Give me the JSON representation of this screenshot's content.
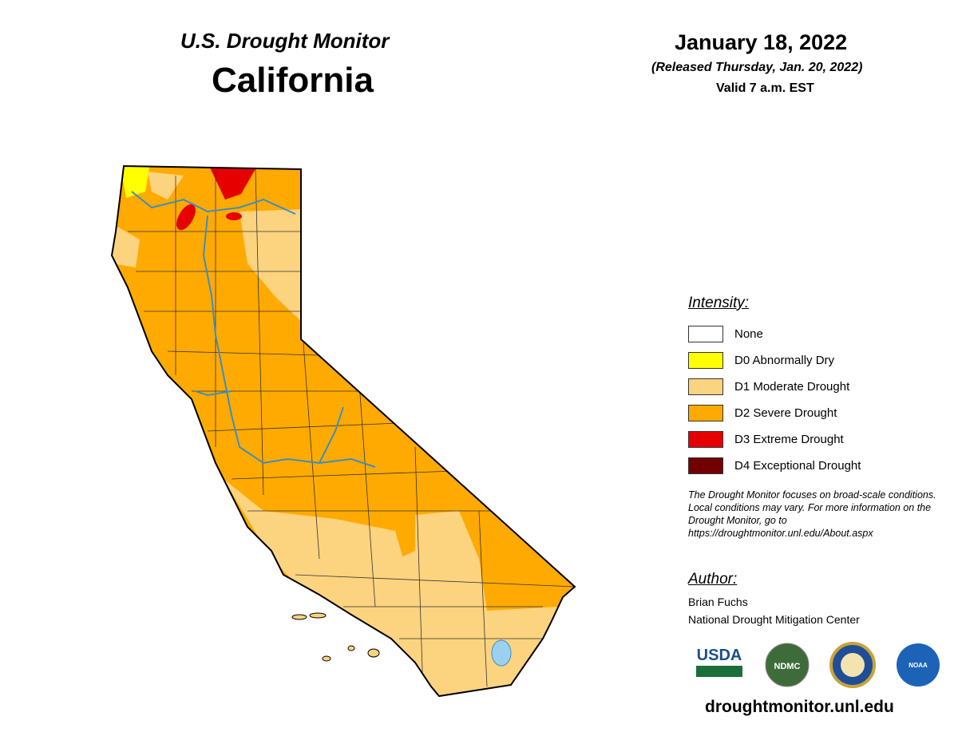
{
  "header": {
    "title": "U.S. Drought Monitor",
    "state": "California",
    "date": "January 18, 2022",
    "released": "(Released Thursday, Jan. 20, 2022)",
    "valid": "Valid 7 a.m. EST"
  },
  "legend": {
    "title": "Intensity:",
    "items": [
      {
        "label": "None",
        "color": "#ffffff"
      },
      {
        "label": "D0 Abnormally Dry",
        "color": "#ffff00"
      },
      {
        "label": "D1 Moderate Drought",
        "color": "#fcd37f"
      },
      {
        "label": "D2 Severe Drought",
        "color": "#ffaa00"
      },
      {
        "label": "D3 Extreme Drought",
        "color": "#e60000"
      },
      {
        "label": "D4 Exceptional Drought",
        "color": "#730000"
      }
    ]
  },
  "note": "The Drought Monitor focuses on broad-scale conditions. Local conditions may vary. For more information on the Drought Monitor, go to https://droughtmonitor.unl.edu/About.aspx",
  "author": {
    "title": "Author:",
    "name": "Brian Fuchs",
    "org": "National Drought Mitigation Center"
  },
  "logos": [
    "USDA",
    "NDMC",
    "NOAA"
  ],
  "footer": "droughtmonitor.unl.edu"
}
